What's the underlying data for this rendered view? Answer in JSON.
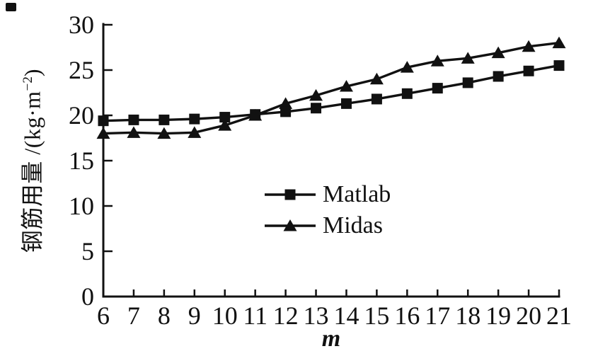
{
  "figure": {
    "background": "#ffffff",
    "ink_color": "#111111"
  },
  "chart_data": {
    "type": "line",
    "title": "",
    "xlabel": "m",
    "ylabel": "钢筋用量 /(kg·m⁻²)",
    "ylabel_parts": {
      "prefix": "钢筋用量 /(kg·m",
      "superscript": "−2",
      "suffix": ")"
    },
    "x": [
      6,
      7,
      8,
      9,
      10,
      11,
      12,
      13,
      14,
      15,
      16,
      17,
      18,
      19,
      20,
      21
    ],
    "series": [
      {
        "name": "Matlab",
        "marker": "square",
        "color": "#111111",
        "values": [
          19.4,
          19.5,
          19.5,
          19.6,
          19.8,
          20.1,
          20.4,
          20.8,
          21.3,
          21.8,
          22.4,
          23.0,
          23.6,
          24.3,
          24.9,
          25.5
        ]
      },
      {
        "name": "Midas",
        "marker": "triangle",
        "color": "#111111",
        "values": [
          18.0,
          18.1,
          18.0,
          18.1,
          18.9,
          20.0,
          21.3,
          22.2,
          23.2,
          24.0,
          25.3,
          26.0,
          26.3,
          26.9,
          27.6,
          28.0
        ]
      }
    ],
    "xlim": [
      6,
      21
    ],
    "ylim": [
      0,
      30
    ],
    "x_ticks": [
      6,
      7,
      8,
      9,
      10,
      11,
      12,
      13,
      14,
      15,
      16,
      17,
      18,
      19,
      20,
      21
    ],
    "y_ticks": [
      0,
      5,
      10,
      15,
      20,
      25,
      30
    ],
    "grid": false,
    "legend_position": "inside-center"
  },
  "legend": {
    "items": [
      {
        "label": "Matlab",
        "marker": "square"
      },
      {
        "label": "Midas",
        "marker": "triangle"
      }
    ]
  }
}
